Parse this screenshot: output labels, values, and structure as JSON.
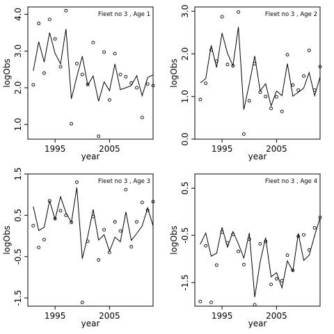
{
  "chart_data": [
    {
      "type": "line",
      "panel_label": "Fleet no 3 , Age 1",
      "xlabel": "year",
      "ylabel": "logObs",
      "xlim": [
        1990,
        2013
      ],
      "ylim": [
        0.6,
        4.2
      ],
      "xticks": [
        1995,
        2005
      ],
      "yticks": [
        1.0,
        2.0,
        3.0,
        4.0
      ],
      "ytick_labels": [
        "1.0",
        "2.0",
        "3.0",
        "4.0"
      ],
      "series": [
        {
          "kind": "points",
          "x": [
            1991,
            1992,
            1993,
            1994,
            1995,
            1996,
            1997,
            1998,
            1999,
            2000,
            2001,
            2002,
            2003,
            2004,
            2005,
            2006,
            2007,
            2008,
            2009,
            2010,
            2011,
            2012,
            2013
          ],
          "y": [
            2.08,
            3.75,
            2.4,
            3.86,
            3.33,
            2.57,
            4.1,
            1.02,
            2.66,
            2.36,
            2.09,
            3.23,
            0.68,
            2.97,
            1.67,
            2.93,
            2.36,
            2.3,
            2.13,
            2.0,
            1.19,
            2.1,
            2.06
          ]
        },
        {
          "kind": "line",
          "x": [
            1991,
            1992,
            1993,
            1994,
            1995,
            1996,
            1997,
            1998,
            1999,
            2000,
            2001,
            2002,
            2003,
            2004,
            2005,
            2006,
            2007,
            2008,
            2009,
            2010,
            2011,
            2012,
            2013
          ],
          "y": [
            2.46,
            3.25,
            2.7,
            3.5,
            2.94,
            2.65,
            3.6,
            1.7,
            2.3,
            2.86,
            2.07,
            2.32,
            1.63,
            2.16,
            1.92,
            2.65,
            1.95,
            2.0,
            2.06,
            2.33,
            1.78,
            2.28,
            2.35
          ]
        }
      ]
    },
    {
      "type": "line",
      "panel_label": "Fleet no 3 , Age 2",
      "xlabel": "year",
      "ylabel": "logObs",
      "xlim": [
        1990,
        2013
      ],
      "ylim": [
        0.0,
        3.1
      ],
      "xticks": [
        1995,
        2005
      ],
      "yticks": [
        0.0,
        1.0,
        2.0,
        3.0
      ],
      "ytick_labels": [
        "0.0",
        "1.0",
        "2.0",
        "3.0"
      ],
      "series": [
        {
          "kind": "points",
          "x": [
            1991,
            1992,
            1993,
            1994,
            1995,
            1996,
            1997,
            1998,
            1999,
            2000,
            2001,
            2002,
            2003,
            2004,
            2005,
            2006,
            2007,
            2008,
            2009,
            2010,
            2011,
            2012,
            2013
          ],
          "y": [
            0.93,
            1.31,
            2.09,
            1.83,
            2.87,
            1.75,
            1.72,
            2.98,
            0.12,
            0.9,
            1.77,
            1.1,
            1.0,
            0.72,
            0.99,
            0.65,
            1.98,
            1.27,
            1.15,
            1.48,
            2.08,
            1.15,
            1.7
          ]
        },
        {
          "kind": "line",
          "x": [
            1991,
            1992,
            1993,
            1994,
            1995,
            1996,
            1997,
            1998,
            1999,
            2000,
            2001,
            2002,
            2003,
            2004,
            2005,
            2006,
            2007,
            2008,
            2009,
            2010,
            2011,
            2012,
            2013
          ],
          "y": [
            1.32,
            1.42,
            2.2,
            1.68,
            2.49,
            2.01,
            1.72,
            2.63,
            0.69,
            1.3,
            1.95,
            1.13,
            1.3,
            0.78,
            1.13,
            1.02,
            1.77,
            1.01,
            1.1,
            1.2,
            1.56,
            1.02,
            1.46
          ]
        }
      ]
    },
    {
      "type": "line",
      "panel_label": "Fleet no 3 , Age 3",
      "xlabel": "year",
      "ylabel": "logObs",
      "xlim": [
        1990,
        2013
      ],
      "ylim": [
        -1.7,
        1.5
      ],
      "xticks": [
        1995,
        2005
      ],
      "yticks": [
        -1.5,
        -0.5,
        0.5,
        1.5
      ],
      "ytick_labels": [
        "-1.5",
        "-0.5",
        "0.5",
        "1.5"
      ],
      "series": [
        {
          "kind": "points",
          "x": [
            1991,
            1992,
            1993,
            1994,
            1995,
            1996,
            1997,
            1998,
            1999,
            2000,
            2001,
            2002,
            2003,
            2004,
            2005,
            2006,
            2007,
            2008,
            2009,
            2010,
            2011,
            2012,
            2013
          ],
          "y": [
            0.25,
            -0.28,
            -0.09,
            0.85,
            0.42,
            0.61,
            0.5,
            0.33,
            1.3,
            -1.61,
            -0.13,
            0.47,
            -0.58,
            0.15,
            -0.4,
            0.34,
            0.12,
            1.12,
            -0.26,
            0.34,
            0.81,
            0.62,
            0.83
          ]
        },
        {
          "kind": "line",
          "x": [
            1991,
            1992,
            1993,
            1994,
            1995,
            1996,
            1997,
            1998,
            1999,
            2000,
            2001,
            2002,
            2003,
            2004,
            2005,
            2006,
            2007,
            2008,
            2009,
            2010,
            2011,
            2012,
            2013
          ],
          "y": [
            0.71,
            0.13,
            0.21,
            0.85,
            0.4,
            0.95,
            0.56,
            0.33,
            1.17,
            -0.55,
            -0.01,
            0.64,
            -0.1,
            0.03,
            -0.37,
            -0.03,
            -0.14,
            0.58,
            -0.11,
            0.06,
            0.24,
            0.68,
            0.24
          ]
        }
      ]
    },
    {
      "type": "line",
      "panel_label": "Fleet no 3 , Age 4",
      "xlabel": "year",
      "ylabel": "logObs",
      "xlim": [
        1990,
        2013
      ],
      "ylim": [
        -2.0,
        0.8
      ],
      "xticks": [
        1995,
        2005
      ],
      "yticks": [
        -1.5,
        -0.5,
        0.5
      ],
      "ytick_labels": [
        "-1.5",
        "-0.5",
        "0.5"
      ],
      "series": [
        {
          "kind": "points",
          "x": [
            1991,
            1992,
            1993,
            1994,
            1995,
            1996,
            1997,
            1998,
            1999,
            2000,
            2001,
            2002,
            2003,
            2004,
            2005,
            2006,
            2007,
            2008,
            2009,
            2010,
            2011,
            2012,
            2013
          ],
          "y": [
            -1.9,
            -0.72,
            -1.92,
            -1.13,
            -0.43,
            -0.66,
            -0.48,
            -0.84,
            -1.12,
            -0.58,
            -1.97,
            -0.68,
            -0.63,
            -1.54,
            -1.42,
            -1.46,
            -0.92,
            -1.24,
            -0.52,
            -0.49,
            -0.81,
            -0.34,
            -0.12
          ]
        },
        {
          "kind": "line",
          "x": [
            1991,
            1992,
            1993,
            1994,
            1995,
            1996,
            1997,
            1998,
            1999,
            2000,
            2001,
            2002,
            2003,
            2004,
            2005,
            2006,
            2007,
            2008,
            2009,
            2010,
            2011,
            2012,
            2013
          ],
          "y": [
            -0.69,
            -0.45,
            -0.94,
            -0.88,
            -0.33,
            -0.75,
            -0.42,
            -0.68,
            -0.98,
            -0.45,
            -1.81,
            -1.06,
            -0.55,
            -1.38,
            -1.29,
            -1.61,
            -1.04,
            -1.26,
            -0.46,
            -1.03,
            -0.92,
            -0.5,
            -0.13
          ]
        }
      ]
    }
  ]
}
